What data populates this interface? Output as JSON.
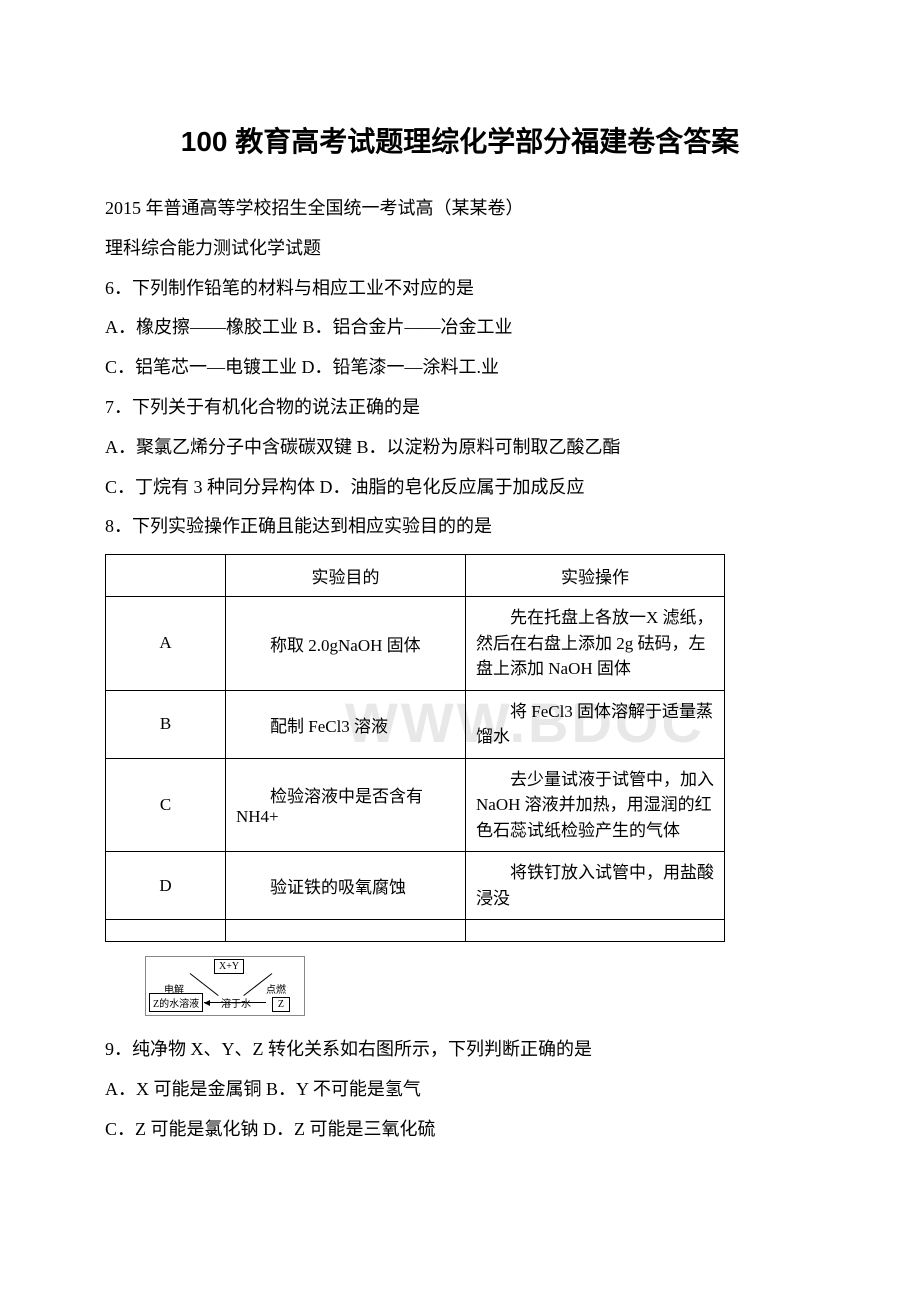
{
  "title": "100 教育高考试题理综化学部分福建卷含答案",
  "lines": {
    "l1": "2015 年普通高等学校招生全国统一考试高（某某卷）",
    "l2": "理科综合能力测试化学试题",
    "l3": "6．下列制作铅笔的材料与相应工业不对应的是",
    "l4": "A．橡皮擦——橡胶工业 B．铝合金片——冶金工业",
    "l5": "C．铝笔芯一—电镀工业 D．铅笔漆一—涂料工.业",
    "l6": "7．下列关于有机化合物的说法正确的是",
    "l7": "A．聚氯乙烯分子中含碳碳双键 B．以淀粉为原料可制取乙酸乙酯",
    "l8": "C．丁烷有 3 种同分异构体 D．油脂的皂化反应属于加成反应",
    "l9": "8．下列实验操作正确且能达到相应实验目的的是",
    "l10": "9．纯净物 X、Y、Z 转化关系如右图所示，下列判断正确的是",
    "l11": "A．X 可能是金属铜 B．Y 不可能是氢气",
    "l12": "C．Z 可能是氯化钠 D．Z 可能是三氧化硫"
  },
  "table": {
    "headers": {
      "c1": "",
      "c2": "实验目的",
      "c3": "实验操作"
    },
    "rows": [
      {
        "label": "A",
        "purpose": "称取 2.0gNaOH 固体",
        "op": "先在托盘上各放一X 滤纸，然后在右盘上添加 2g 砝码，左盘上添加 NaOH 固体"
      },
      {
        "label": "B",
        "purpose": "配制 FeCl3 溶液",
        "op": "将 FeCl3 固体溶解于适量蒸馏水"
      },
      {
        "label": "C",
        "purpose": "检验溶液中是否含有 NH4+",
        "op": "去少量试液于试管中，加入 NaOH 溶液并加热，用湿润的红色石蕊试纸检验产生的气体"
      },
      {
        "label": "D",
        "purpose": "验证铁的吸氧腐蚀",
        "op": "将铁钉放入试管中，用盐酸浸没"
      }
    ]
  },
  "diagram": {
    "top": "X+Y",
    "left_label": "电解",
    "right_label": "点燃",
    "bottom_left": "Z的水溶液",
    "bottom_mid": "溶于水",
    "bottom_right": "Z"
  },
  "watermark": "WWW.BDOC",
  "colors": {
    "background": "#ffffff",
    "text": "#000000",
    "border": "#000000",
    "watermark": "#e8e8e8"
  }
}
